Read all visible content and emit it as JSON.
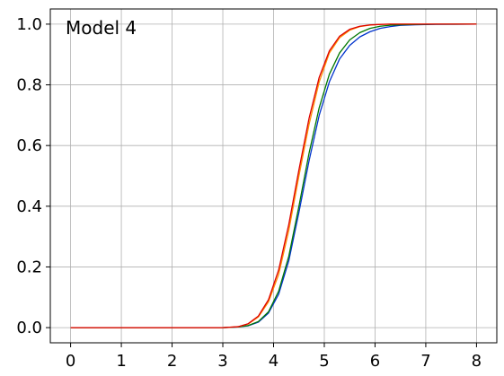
{
  "chart_data": {
    "type": "line",
    "title": "",
    "xlabel": "",
    "ylabel": "",
    "annotation": "Model 4",
    "xlim": [
      -0.4,
      8.4
    ],
    "ylim": [
      -0.05,
      1.05
    ],
    "grid": true,
    "x_ticks": [
      0,
      1,
      2,
      3,
      4,
      5,
      6,
      7,
      8
    ],
    "x_tick_labels": [
      "0",
      "1",
      "2",
      "3",
      "4",
      "5",
      "6",
      "7",
      "8"
    ],
    "y_ticks": [
      0.0,
      0.2,
      0.4,
      0.6,
      0.8,
      1.0
    ],
    "y_tick_labels": [
      "0.0",
      "0.2",
      "0.4",
      "0.6",
      "0.8",
      "1.0"
    ],
    "x": [
      0,
      1,
      2,
      3,
      3.3,
      3.5,
      3.7,
      3.9,
      4.1,
      4.3,
      4.5,
      4.7,
      4.9,
      5.1,
      5.3,
      5.5,
      5.7,
      5.9,
      6.1,
      6.3,
      6.5,
      6.8,
      7.2,
      8
    ],
    "series": [
      {
        "name": "blue",
        "color": "#0033cc",
        "values": [
          0,
          0,
          0,
          0,
          0.002,
          0.006,
          0.018,
          0.048,
          0.11,
          0.22,
          0.38,
          0.55,
          0.7,
          0.81,
          0.885,
          0.93,
          0.958,
          0.975,
          0.986,
          0.992,
          0.996,
          0.998,
          0.9995,
          1
        ]
      },
      {
        "name": "green",
        "color": "#007700",
        "values": [
          0,
          0,
          0,
          0,
          0.002,
          0.007,
          0.02,
          0.052,
          0.12,
          0.235,
          0.4,
          0.575,
          0.725,
          0.835,
          0.905,
          0.948,
          0.972,
          0.986,
          0.993,
          0.9965,
          0.998,
          0.999,
          0.9997,
          1
        ]
      },
      {
        "name": "orange",
        "color": "#ff8c00",
        "values": [
          0,
          0,
          0,
          0,
          0.003,
          0.012,
          0.035,
          0.085,
          0.175,
          0.32,
          0.5,
          0.67,
          0.81,
          0.905,
          0.955,
          0.98,
          0.992,
          0.997,
          0.999,
          1,
          1,
          1,
          1,
          1
        ]
      },
      {
        "name": "red",
        "color": "#dd0000",
        "values": [
          0,
          0,
          0,
          0,
          0.003,
          0.013,
          0.038,
          0.092,
          0.19,
          0.34,
          0.52,
          0.69,
          0.825,
          0.912,
          0.96,
          0.983,
          0.993,
          0.9975,
          0.9992,
          1,
          1,
          1,
          1,
          1
        ]
      }
    ]
  }
}
